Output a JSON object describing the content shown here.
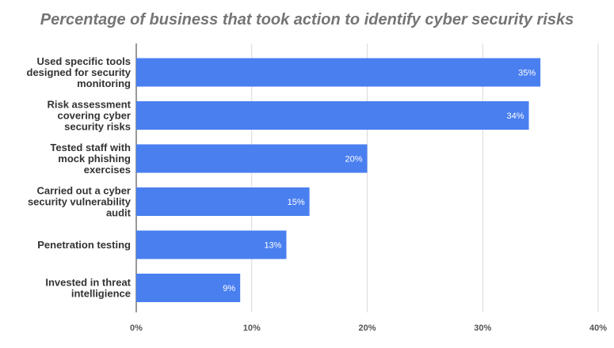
{
  "chart_data": {
    "type": "bar",
    "orientation": "horizontal",
    "title": "Percentage of business that took action to identify cyber security risks",
    "categories": [
      "Used specific tools designed for security monitoring",
      "Risk assessment covering cyber security risks",
      "Tested staff with mock phishing exercises",
      "Carried out a cyber security vulnerability audit",
      "Penetration testing",
      "Invested in threat intelligience"
    ],
    "category_lines": [
      [
        "Used specific tools",
        "designed for security",
        "monitoring"
      ],
      [
        "Risk assessment",
        "covering cyber",
        "security risks"
      ],
      [
        "Tested staff with",
        "mock phishing",
        "exercises"
      ],
      [
        "Carried out a cyber",
        "security vulnerability",
        "audit"
      ],
      [
        "Penetration testing"
      ],
      [
        "Invested in threat",
        "intelligience"
      ]
    ],
    "values": [
      35,
      34,
      20,
      15,
      13,
      9
    ],
    "data_labels": [
      "35%",
      "34%",
      "20%",
      "15%",
      "13%",
      "9%"
    ],
    "xlim": [
      0,
      40
    ],
    "x_ticks": [
      0,
      10,
      20,
      30,
      40
    ],
    "x_tick_labels": [
      "0%",
      "10%",
      "20%",
      "30%",
      "40%"
    ],
    "grid": true,
    "legend": "none",
    "bar_color": "#4a7ff0",
    "label_color": "#ffffff",
    "text_color": "#333333",
    "title_color": "#757575",
    "grid_color": "#d9d9d9"
  }
}
